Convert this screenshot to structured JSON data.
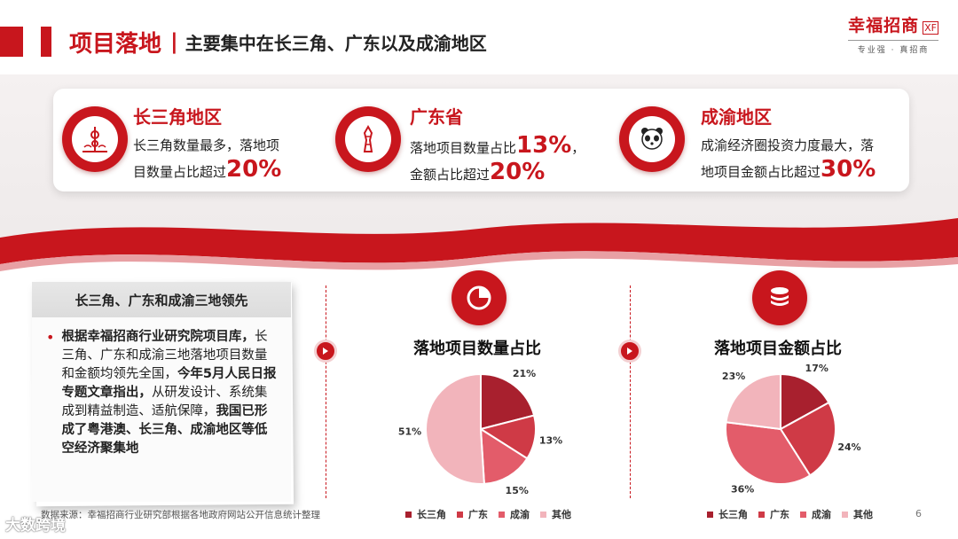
{
  "header": {
    "title": "项目落地",
    "separator": "|",
    "subtitle": "主要集中在长三角、广东以及成渝地区"
  },
  "brand": {
    "name": "幸福招商",
    "mark": "XF",
    "slogan": "专业强 · 真招商"
  },
  "regions": [
    {
      "title": "长三角地区",
      "icon": "tower-skyline-icon",
      "line1": "长三角数量最多，落地项",
      "line2_text": "目数量占比超过",
      "line2_big": "20%"
    },
    {
      "title": "广东省",
      "icon": "canton-tower-icon",
      "line1_text": "落地项目数量占比",
      "line1_big": "13%",
      "line1_end": "，",
      "line2_text": "金额占比超过",
      "line2_big": "20%"
    },
    {
      "title": "成渝地区",
      "icon": "panda-icon",
      "line1": "成渝经济圈投资力度最大，落",
      "line2_text": "地项目金额占比超过",
      "line2_big": "30%"
    }
  ],
  "summary": {
    "heading": "长三角、广东和成渝三地领先",
    "bullet": "•",
    "part1_bold": "根据幸福招商行业研究院项目库，",
    "part2": "长三角、广东和成渝三地落地项目数量和金额均领先全国，",
    "part3_bold": "今年5月人民日报专题文章指出，",
    "part4": "从研发设计、系统集成到精益制造、适航保障，",
    "part5_bold": "我国已形成了粤港澳、长三角、成渝地区等低空经济聚集地"
  },
  "colors": {
    "accent": "#c8161d",
    "series": [
      "#a8202e",
      "#cf3a46",
      "#e35c6a",
      "#f2b4bb"
    ]
  },
  "chart_data": [
    {
      "type": "pie",
      "title": "落地项目数量占比",
      "icon": "pie-chart-icon",
      "categories": [
        "长三角",
        "广东",
        "成渝",
        "其他"
      ],
      "values": [
        21,
        13,
        15,
        51
      ],
      "labels": [
        "21%",
        "13%",
        "15%",
        "51%"
      ]
    },
    {
      "type": "pie",
      "title": "落地项目金额占比",
      "icon": "coin-stack-icon",
      "categories": [
        "长三角",
        "广东",
        "成渝",
        "其他"
      ],
      "values": [
        17,
        24,
        36,
        23
      ],
      "labels": [
        "17%",
        "24%",
        "36%",
        "23%"
      ]
    }
  ],
  "footer": {
    "source": "数据来源：幸福招商行业研究部根据各地政府网站公开信息统计整理",
    "page": "6",
    "watermark": "大数跨境"
  }
}
